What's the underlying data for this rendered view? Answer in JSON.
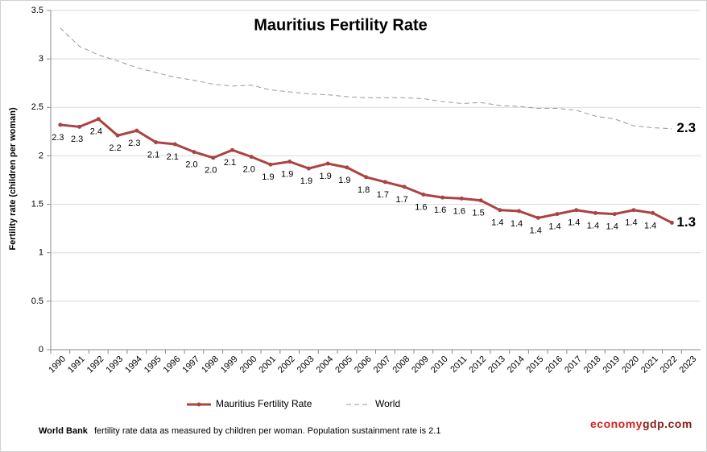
{
  "chart_data": {
    "type": "line",
    "title": "Mauritius Fertility Rate",
    "y_label": "Fertility rate (children per woman)",
    "categories": [
      "1990",
      "1991",
      "1992",
      "1993",
      "1994",
      "1995",
      "1996",
      "1997",
      "1998",
      "1999",
      "2000",
      "2001",
      "2002",
      "2003",
      "2004",
      "2005",
      "2006",
      "2007",
      "2008",
      "2009",
      "2010",
      "2011",
      "2012",
      "2013",
      "2014",
      "2015",
      "2016",
      "2017",
      "2018",
      "2019",
      "2020",
      "2021",
      "2022",
      "2023"
    ],
    "series": [
      {
        "name": "Mauritius Fertility Rate",
        "color": "#a94442",
        "style": "solid",
        "markers": true,
        "values": [
          2.32,
          2.3,
          2.38,
          2.21,
          2.26,
          2.14,
          2.12,
          2.04,
          1.98,
          2.06,
          1.99,
          1.91,
          1.94,
          1.87,
          1.92,
          1.88,
          1.78,
          1.73,
          1.68,
          1.6,
          1.57,
          1.56,
          1.54,
          1.44,
          1.43,
          1.36,
          1.4,
          1.44,
          1.41,
          1.4,
          1.44,
          1.41,
          1.31,
          null
        ],
        "value_labels": [
          "2.3",
          "2.3",
          "2.4",
          "2.2",
          "2.3",
          "2.1",
          "2.1",
          "2.0",
          "2.0",
          "2.1",
          "2.0",
          "1.9",
          "1.9",
          "1.9",
          "1.9",
          "1.9",
          "1.8",
          "1.7",
          "1.7",
          "1.6",
          "1.6",
          "1.6",
          "1.5",
          "1.4",
          "1.4",
          "1.4",
          "1.4",
          "1.4",
          "1.4",
          "1.4",
          "1.4",
          "1.4",
          null,
          null
        ],
        "end_label": "1.3"
      },
      {
        "name": "World",
        "color": "#999999",
        "style": "dashed",
        "markers": false,
        "values": [
          3.32,
          3.13,
          3.04,
          2.98,
          2.91,
          2.86,
          2.81,
          2.78,
          2.74,
          2.72,
          2.73,
          2.68,
          2.66,
          2.64,
          2.63,
          2.61,
          2.6,
          2.6,
          2.6,
          2.59,
          2.56,
          2.54,
          2.55,
          2.52,
          2.51,
          2.49,
          2.49,
          2.47,
          2.41,
          2.38,
          2.31,
          2.29,
          2.28,
          null
        ],
        "end_label": "2.3"
      }
    ],
    "ylim": [
      0,
      3.5
    ],
    "yticks": [
      0,
      0.5,
      1,
      1.5,
      2,
      2.5,
      3,
      3.5
    ],
    "grid": true,
    "footer": {
      "source_name": "World Bank",
      "source_text": "fertility rate data as measured by children per woman.  Population sustainment rate is 2.1",
      "brand_a": "economy",
      "brand_b": "gdp.com"
    }
  }
}
